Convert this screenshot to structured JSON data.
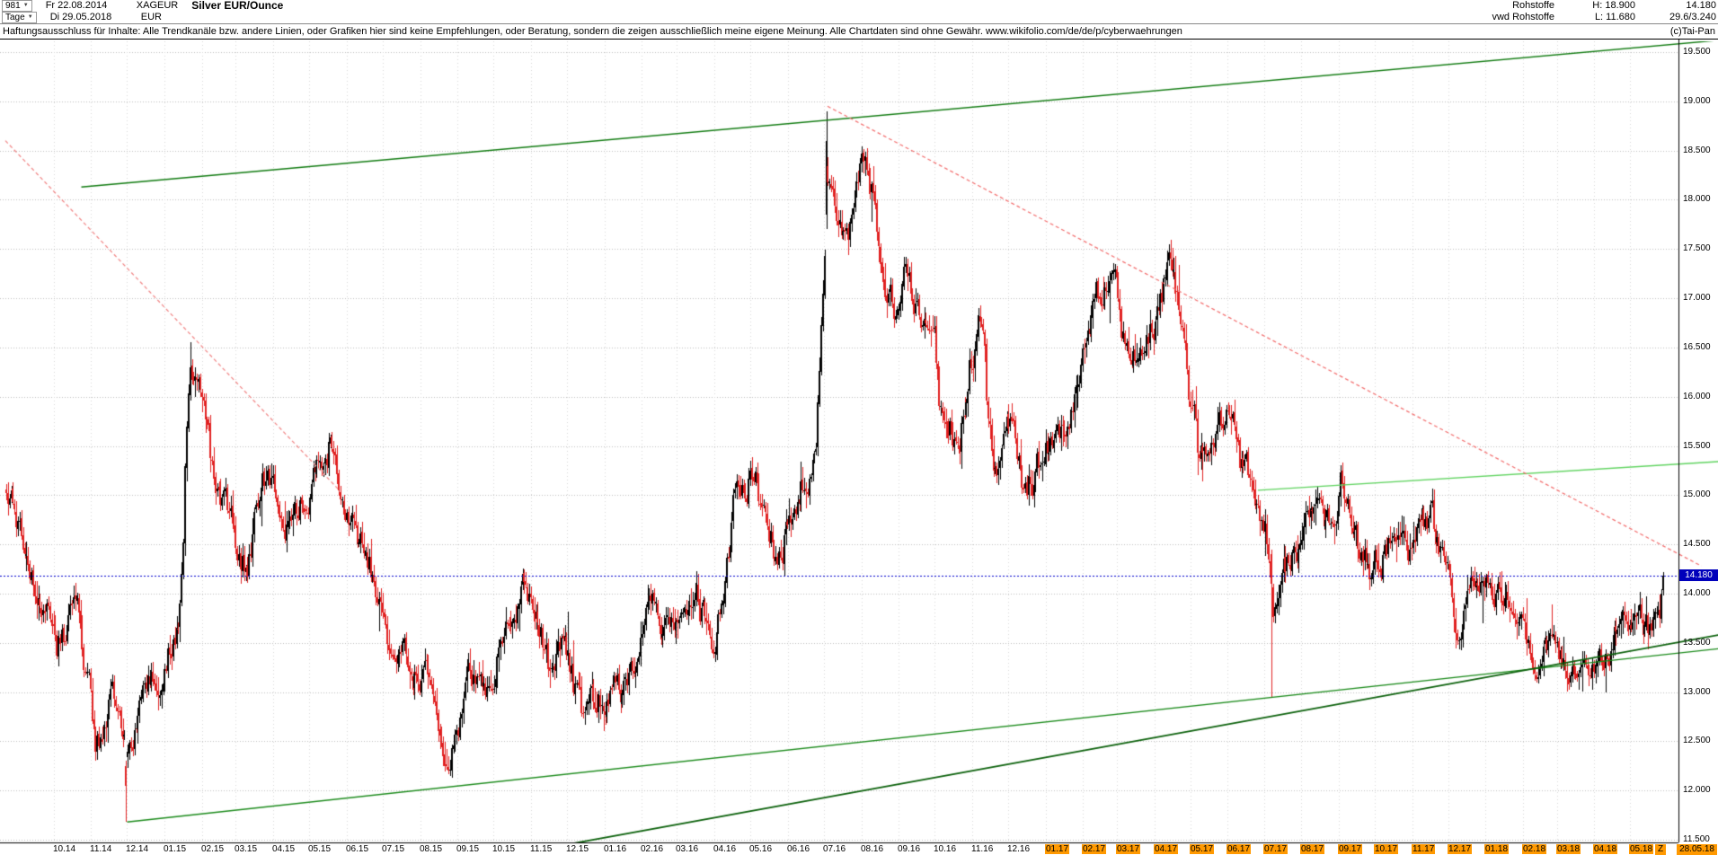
{
  "header": {
    "bars_count": "981",
    "start_date": "Fr 22.08.2014",
    "symbol": "XAGEUR",
    "title": "Silver EUR/Ounce",
    "period": "Tage",
    "end_date": "Di 29.05.2018",
    "currency": "EUR",
    "right": {
      "line1_label": "Rohstoffe",
      "line1_high": "H: 18.900",
      "line1_value": "14.180",
      "line2_label": "vwd Rohstoffe",
      "line2_low": "L: 11.680",
      "line2_value": "29.6/3.240"
    }
  },
  "disclaimer": {
    "text": "Haftungsausschluss für Inhalte: Alle Trendkanäle bzw. andere Linien, oder Grafiken hier sind keine Empfehlungen, oder Beratung, sondern die zeigen ausschließlich meine eigene Meinung. Alle Chartdaten sind ohne Gewähr.  www.wikifolio.com/de/de/p/cyberwaehrungen",
    "copyright": "(c)Tai-Pan"
  },
  "colors": {
    "up": "#000000",
    "down": "#e02020",
    "grid_h": "#bdbdbd",
    "grid_v": "#d6d6d6",
    "hline": "#0000cc",
    "badge_bg": "#0000bb",
    "highlight": "#ff9900"
  },
  "chart_data": {
    "type": "candlestick",
    "title": "Silver EUR/Ounce (XAGEUR), daily bars",
    "x_start": "2014-08-22",
    "x_end": "2018-05-29",
    "bars": 981,
    "high": 18.9,
    "low": 11.68,
    "last": 14.18,
    "ylim": [
      11.5,
      19.5
    ],
    "y_ticks": [
      "19.500",
      "19.000",
      "18.500",
      "18.000",
      "17.500",
      "17.000",
      "16.500",
      "16.000",
      "15.500",
      "15.000",
      "14.500",
      "14.000",
      "13.500",
      "13.000",
      "12.500",
      "12.000",
      "11.500"
    ],
    "x_ticks": [
      {
        "label": "10.14",
        "date": "2014-10-01",
        "hl": false
      },
      {
        "label": "11.14",
        "date": "2014-11-01",
        "hl": false
      },
      {
        "label": "12.14",
        "date": "2014-12-01",
        "hl": false
      },
      {
        "label": "01.15",
        "date": "2015-01-01",
        "hl": false
      },
      {
        "label": "02.15",
        "date": "2015-02-01",
        "hl": false
      },
      {
        "label": "03.15",
        "date": "2015-03-01",
        "hl": false
      },
      {
        "label": "04.15",
        "date": "2015-04-01",
        "hl": false
      },
      {
        "label": "05.15",
        "date": "2015-05-01",
        "hl": false
      },
      {
        "label": "06.15",
        "date": "2015-06-01",
        "hl": false
      },
      {
        "label": "07.15",
        "date": "2015-07-01",
        "hl": false
      },
      {
        "label": "08.15",
        "date": "2015-08-01",
        "hl": false
      },
      {
        "label": "09.15",
        "date": "2015-09-01",
        "hl": false
      },
      {
        "label": "10.15",
        "date": "2015-10-01",
        "hl": false
      },
      {
        "label": "11.15",
        "date": "2015-11-01",
        "hl": false
      },
      {
        "label": "12.15",
        "date": "2015-12-01",
        "hl": false
      },
      {
        "label": "01.16",
        "date": "2016-01-01",
        "hl": false
      },
      {
        "label": "02.16",
        "date": "2016-02-01",
        "hl": false
      },
      {
        "label": "03.16",
        "date": "2016-03-01",
        "hl": false
      },
      {
        "label": "04.16",
        "date": "2016-04-01",
        "hl": false
      },
      {
        "label": "05.16",
        "date": "2016-05-01",
        "hl": false
      },
      {
        "label": "06.16",
        "date": "2016-06-01",
        "hl": false
      },
      {
        "label": "07.16",
        "date": "2016-07-01",
        "hl": false
      },
      {
        "label": "08.16",
        "date": "2016-08-01",
        "hl": false
      },
      {
        "label": "09.16",
        "date": "2016-09-01",
        "hl": false
      },
      {
        "label": "10.16",
        "date": "2016-10-01",
        "hl": false
      },
      {
        "label": "11.16",
        "date": "2016-11-01",
        "hl": false
      },
      {
        "label": "12.16",
        "date": "2016-12-01",
        "hl": false
      },
      {
        "label": "01.17",
        "date": "2017-01-01",
        "hl": true
      },
      {
        "label": "02.17",
        "date": "2017-02-01",
        "hl": true
      },
      {
        "label": "03.17",
        "date": "2017-03-01",
        "hl": true
      },
      {
        "label": "04.17",
        "date": "2017-04-01",
        "hl": true
      },
      {
        "label": "05.17",
        "date": "2017-05-01",
        "hl": true
      },
      {
        "label": "06.17",
        "date": "2017-06-01",
        "hl": true
      },
      {
        "label": "07.17",
        "date": "2017-07-01",
        "hl": true
      },
      {
        "label": "08.17",
        "date": "2017-08-01",
        "hl": true
      },
      {
        "label": "09.17",
        "date": "2017-09-01",
        "hl": true
      },
      {
        "label": "10.17",
        "date": "2017-10-01",
        "hl": true
      },
      {
        "label": "11.17",
        "date": "2017-11-01",
        "hl": true
      },
      {
        "label": "12.17",
        "date": "2017-12-01",
        "hl": true
      },
      {
        "label": "01.18",
        "date": "2018-01-01",
        "hl": true
      },
      {
        "label": "02.18",
        "date": "2018-02-01",
        "hl": true
      },
      {
        "label": "03.18",
        "date": "2018-03-01",
        "hl": true
      },
      {
        "label": "04.18",
        "date": "2018-04-01",
        "hl": true
      },
      {
        "label": "05.18",
        "date": "2018-05-01",
        "hl": true
      }
    ],
    "z_label": "Z",
    "current_date_label": "28.05.18",
    "hline": {
      "price": 14.18,
      "label": "14.180",
      "color": "#0000cc"
    },
    "anchors": [
      [
        "2014-08-22",
        14.9
      ],
      [
        "2014-09-05",
        14.45
      ],
      [
        "2014-09-22",
        13.9
      ],
      [
        "2014-10-03",
        13.35
      ],
      [
        "2014-10-21",
        13.7
      ],
      [
        "2014-11-05",
        12.5
      ],
      [
        "2014-11-21",
        12.75
      ],
      [
        "2014-12-01",
        12.15
      ],
      [
        "2014-12-16",
        12.95
      ],
      [
        "2015-01-02",
        13.05
      ],
      [
        "2015-01-13",
        13.85
      ],
      [
        "2015-01-22",
        16.45
      ],
      [
        "2015-02-02",
        15.95
      ],
      [
        "2015-02-11",
        14.85
      ],
      [
        "2015-02-24",
        14.55
      ],
      [
        "2015-03-11",
        14.25
      ],
      [
        "2015-03-24",
        15.25
      ],
      [
        "2015-04-07",
        14.75
      ],
      [
        "2015-04-21",
        14.95
      ],
      [
        "2015-05-06",
        15.25
      ],
      [
        "2015-05-18",
        15.55
      ],
      [
        "2015-06-01",
        15.05
      ],
      [
        "2015-06-16",
        14.3
      ],
      [
        "2015-07-01",
        14.05
      ],
      [
        "2015-07-20",
        13.45
      ],
      [
        "2015-08-05",
        13.1
      ],
      [
        "2015-08-26",
        12.55
      ],
      [
        "2015-09-10",
        13.15
      ],
      [
        "2015-09-29",
        13.0
      ],
      [
        "2015-10-14",
        14.05
      ],
      [
        "2015-10-28",
        14.3
      ],
      [
        "2015-11-16",
        13.25
      ],
      [
        "2015-11-30",
        13.45
      ],
      [
        "2015-12-14",
        12.7
      ],
      [
        "2016-01-05",
        12.95
      ],
      [
        "2016-01-26",
        13.1
      ],
      [
        "2016-02-10",
        13.85
      ],
      [
        "2016-03-01",
        13.6
      ],
      [
        "2016-03-17",
        14.0
      ],
      [
        "2016-04-01",
        13.65
      ],
      [
        "2016-04-20",
        15.05
      ],
      [
        "2016-05-02",
        15.45
      ],
      [
        "2016-05-24",
        14.4
      ],
      [
        "2016-06-08",
        15.05
      ],
      [
        "2016-06-23",
        15.55
      ],
      [
        "2016-06-27",
        16.2
      ],
      [
        "2016-07-04",
        18.55
      ],
      [
        "2016-07-12",
        17.95
      ],
      [
        "2016-07-21",
        17.65
      ],
      [
        "2016-08-02",
        18.25
      ],
      [
        "2016-08-16",
        17.7
      ],
      [
        "2016-08-30",
        16.8
      ],
      [
        "2016-09-07",
        17.35
      ],
      [
        "2016-09-21",
        17.0
      ],
      [
        "2016-09-30",
        17.15
      ],
      [
        "2016-10-07",
        15.95
      ],
      [
        "2016-10-21",
        15.7
      ],
      [
        "2016-11-03",
        16.45
      ],
      [
        "2016-11-09",
        16.8
      ],
      [
        "2016-11-18",
        15.45
      ],
      [
        "2016-12-01",
        15.6
      ],
      [
        "2016-12-15",
        15.1
      ],
      [
        "2017-01-03",
        15.45
      ],
      [
        "2017-01-23",
        15.95
      ],
      [
        "2017-02-08",
        16.7
      ],
      [
        "2017-02-27",
        17.15
      ],
      [
        "2017-03-10",
        16.35
      ],
      [
        "2017-03-21",
        16.55
      ],
      [
        "2017-04-04",
        16.95
      ],
      [
        "2017-04-13",
        17.45
      ],
      [
        "2017-05-02",
        15.95
      ],
      [
        "2017-05-09",
        15.25
      ],
      [
        "2017-05-24",
        15.55
      ],
      [
        "2017-06-06",
        15.8
      ],
      [
        "2017-06-21",
        15.05
      ],
      [
        "2017-07-03",
        14.75
      ],
      [
        "2017-07-10",
        14.15
      ],
      [
        "2017-07-24",
        14.35
      ],
      [
        "2017-08-08",
        14.6
      ],
      [
        "2017-08-22",
        14.45
      ],
      [
        "2017-09-04",
        15.0
      ],
      [
        "2017-09-15",
        14.75
      ],
      [
        "2017-09-28",
        14.3
      ],
      [
        "2017-10-12",
        14.5
      ],
      [
        "2017-10-26",
        14.45
      ],
      [
        "2017-11-08",
        14.55
      ],
      [
        "2017-11-17",
        14.7
      ],
      [
        "2017-11-29",
        14.25
      ],
      [
        "2017-12-12",
        13.55
      ],
      [
        "2017-12-29",
        14.05
      ],
      [
        "2018-01-16",
        14.05
      ],
      [
        "2018-01-25",
        14.15
      ],
      [
        "2018-02-08",
        13.45
      ],
      [
        "2018-02-21",
        13.55
      ],
      [
        "2018-03-07",
        13.35
      ],
      [
        "2018-03-20",
        13.3
      ],
      [
        "2018-04-02",
        13.3
      ],
      [
        "2018-04-13",
        13.55
      ],
      [
        "2018-04-19",
        13.85
      ],
      [
        "2018-04-30",
        13.65
      ],
      [
        "2018-05-09",
        13.55
      ],
      [
        "2018-05-16",
        13.5
      ],
      [
        "2018-05-22",
        13.75
      ],
      [
        "2018-05-29",
        14.18
      ]
    ],
    "forced": {
      "2014-12-01": {
        "o": 12.25,
        "h": 12.3,
        "l": 11.68,
        "c": 12.05
      },
      "2015-01-22": {
        "h": 16.55
      },
      "2016-07-04": {
        "o": 17.85,
        "h": 18.9,
        "l": 17.7,
        "c": 18.6
      },
      "2017-04-13": {
        "h": 17.55
      },
      "2017-07-07": {
        "o": 14.4,
        "h": 14.45,
        "l": 12.95,
        "c": 14.1
      },
      "2018-05-29": {
        "o": 14.04,
        "h": 14.22,
        "l": 13.98,
        "c": 14.18
      }
    },
    "trendlines": [
      {
        "name": "rising-channel-top",
        "color": "#0f7a0f",
        "style": "solid",
        "width": 1.4,
        "from": [
          "2014-10-24",
          18.13
        ],
        "to": [
          "2018-07-13",
          19.62
        ]
      },
      {
        "name": "minor-resistance-right",
        "color": "#5fd35f",
        "style": "solid",
        "width": 1.4,
        "from": [
          "2017-06-26",
          15.05
        ],
        "to": [
          "2018-07-13",
          15.34
        ]
      },
      {
        "name": "long-term-support",
        "color": "#1a8a1a",
        "style": "solid",
        "width": 1.4,
        "from": [
          "2014-12-01",
          11.68
        ],
        "to": [
          "2018-07-13",
          13.44
        ]
      },
      {
        "name": "secondary-support",
        "color": "#0a600a",
        "style": "solid",
        "width": 1.8,
        "from": [
          "2015-09-15",
          11.28
        ],
        "to": [
          "2018-07-13",
          13.58
        ]
      },
      {
        "name": "old-downtrend",
        "color": "#f08080",
        "style": "dashed",
        "width": 1.2,
        "from": [
          "2014-08-22",
          18.6
        ],
        "to": [
          "2015-05-26",
          15.05
        ]
      },
      {
        "name": "main-downtrend",
        "color": "#f26a6a",
        "style": "dashed",
        "width": 1.2,
        "from": [
          "2016-07-04",
          18.95
        ],
        "to": [
          "2018-06-29",
          14.28
        ]
      }
    ]
  }
}
